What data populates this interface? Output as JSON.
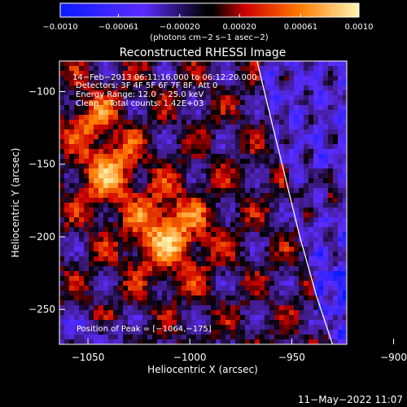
{
  "chart_data": {
    "type": "heatmap",
    "title": "Reconstructed RHESSI Image",
    "xlabel": "Heliocentric X (arcsec)",
    "ylabel": "Heliocentric Y (arcsec)",
    "xlim": [
      -1064,
      -923
    ],
    "ylim": [
      -274,
      -79
    ],
    "xticks": [
      {
        "value": -1050,
        "label": "−1050"
      },
      {
        "value": -1000,
        "label": "−1000"
      },
      {
        "value": -950,
        "label": "−950"
      },
      {
        "value": -900,
        "label": "−900"
      }
    ],
    "yticks": [
      {
        "value": -100,
        "label": "−100"
      },
      {
        "value": -150,
        "label": "−150"
      },
      {
        "value": -200,
        "label": "−200"
      },
      {
        "value": -250,
        "label": "−250"
      }
    ],
    "colorbar": {
      "range": [
        -0.001,
        0.001
      ],
      "ticks": [
        {
          "value": -0.001,
          "label": "−0.0010"
        },
        {
          "value": -0.00061,
          "label": "−0.00061"
        },
        {
          "value": -0.0002,
          "label": "−0.00020"
        },
        {
          "value": 0.0002,
          "label": "0.00020"
        },
        {
          "value": 0.00061,
          "label": "0.00061"
        },
        {
          "value": 0.001,
          "label": "0.0010"
        }
      ],
      "unit_label": "(photons cm−2 s−1 asec−2)"
    },
    "annotations": [
      "14−Feb−2013 06:11:16.000 to 06:12:20.000",
      "Detectors: 3F 4F 5F 6F 7F 8F, Att 0",
      "Energy Range: 12.0 − 25.0 keV",
      "Clean    Total counts: 1.42E+03"
    ],
    "peak_label": "Position of Peak = [−1064,−175]",
    "peak_position": [
      -1064,
      -175
    ],
    "limb_curve": [
      {
        "x": -967,
        "y": -79
      },
      {
        "x": -960,
        "y": -120
      },
      {
        "x": -953,
        "y": -160
      },
      {
        "x": -946,
        "y": -200
      },
      {
        "x": -938,
        "y": -240
      },
      {
        "x": -930,
        "y": -274
      }
    ]
  },
  "footer_timestamp": "11−May−2022 11:07"
}
